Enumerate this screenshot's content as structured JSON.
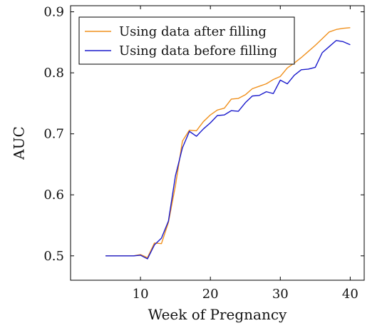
{
  "chart_data": {
    "type": "line",
    "title": "",
    "xlabel": "Week of Pregnancy",
    "ylabel": "AUC",
    "xlim": [
      0,
      42
    ],
    "ylim": [
      0.46,
      0.91
    ],
    "xticks": [
      10,
      20,
      30,
      40
    ],
    "yticks": [
      0.5,
      0.6,
      0.7,
      0.8,
      0.9
    ],
    "xtick_labels": [
      "10",
      "20",
      "30",
      "40"
    ],
    "ytick_labels": [
      "0.5",
      "0.6",
      "0.7",
      "0.8",
      "0.9"
    ],
    "grid": false,
    "legend_position": "top-left",
    "series": [
      {
        "name": "Using data after filling",
        "color": "#f0901c",
        "x": [
          5,
          6,
          7,
          8,
          9,
          10,
          11,
          12,
          13,
          14,
          15,
          16,
          17,
          18,
          19,
          20,
          21,
          22,
          23,
          24,
          25,
          26,
          27,
          28,
          29,
          30,
          31,
          32,
          33,
          34,
          35,
          36,
          37,
          38,
          39,
          40
        ],
        "y": [
          0.5,
          0.5,
          0.5,
          0.5,
          0.5,
          0.502,
          0.497,
          0.521,
          0.52,
          0.555,
          0.615,
          0.688,
          0.706,
          0.705,
          0.72,
          0.731,
          0.739,
          0.742,
          0.757,
          0.758,
          0.764,
          0.774,
          0.778,
          0.782,
          0.789,
          0.794,
          0.808,
          0.816,
          0.825,
          0.835,
          0.845,
          0.856,
          0.867,
          0.871,
          0.873,
          0.874
        ]
      },
      {
        "name": "Using data before filling",
        "color": "#1a1acc",
        "x": [
          5,
          6,
          7,
          8,
          9,
          10,
          11,
          12,
          13,
          14,
          15,
          16,
          17,
          18,
          19,
          20,
          21,
          22,
          23,
          24,
          25,
          26,
          27,
          28,
          29,
          30,
          31,
          32,
          33,
          34,
          35,
          36,
          37,
          38,
          39,
          40
        ],
        "y": [
          0.5,
          0.5,
          0.5,
          0.5,
          0.5,
          0.501,
          0.495,
          0.518,
          0.529,
          0.557,
          0.631,
          0.677,
          0.704,
          0.696,
          0.708,
          0.718,
          0.73,
          0.731,
          0.738,
          0.737,
          0.751,
          0.762,
          0.763,
          0.769,
          0.766,
          0.788,
          0.782,
          0.796,
          0.805,
          0.806,
          0.809,
          0.833,
          0.843,
          0.853,
          0.851,
          0.846
        ]
      }
    ]
  }
}
